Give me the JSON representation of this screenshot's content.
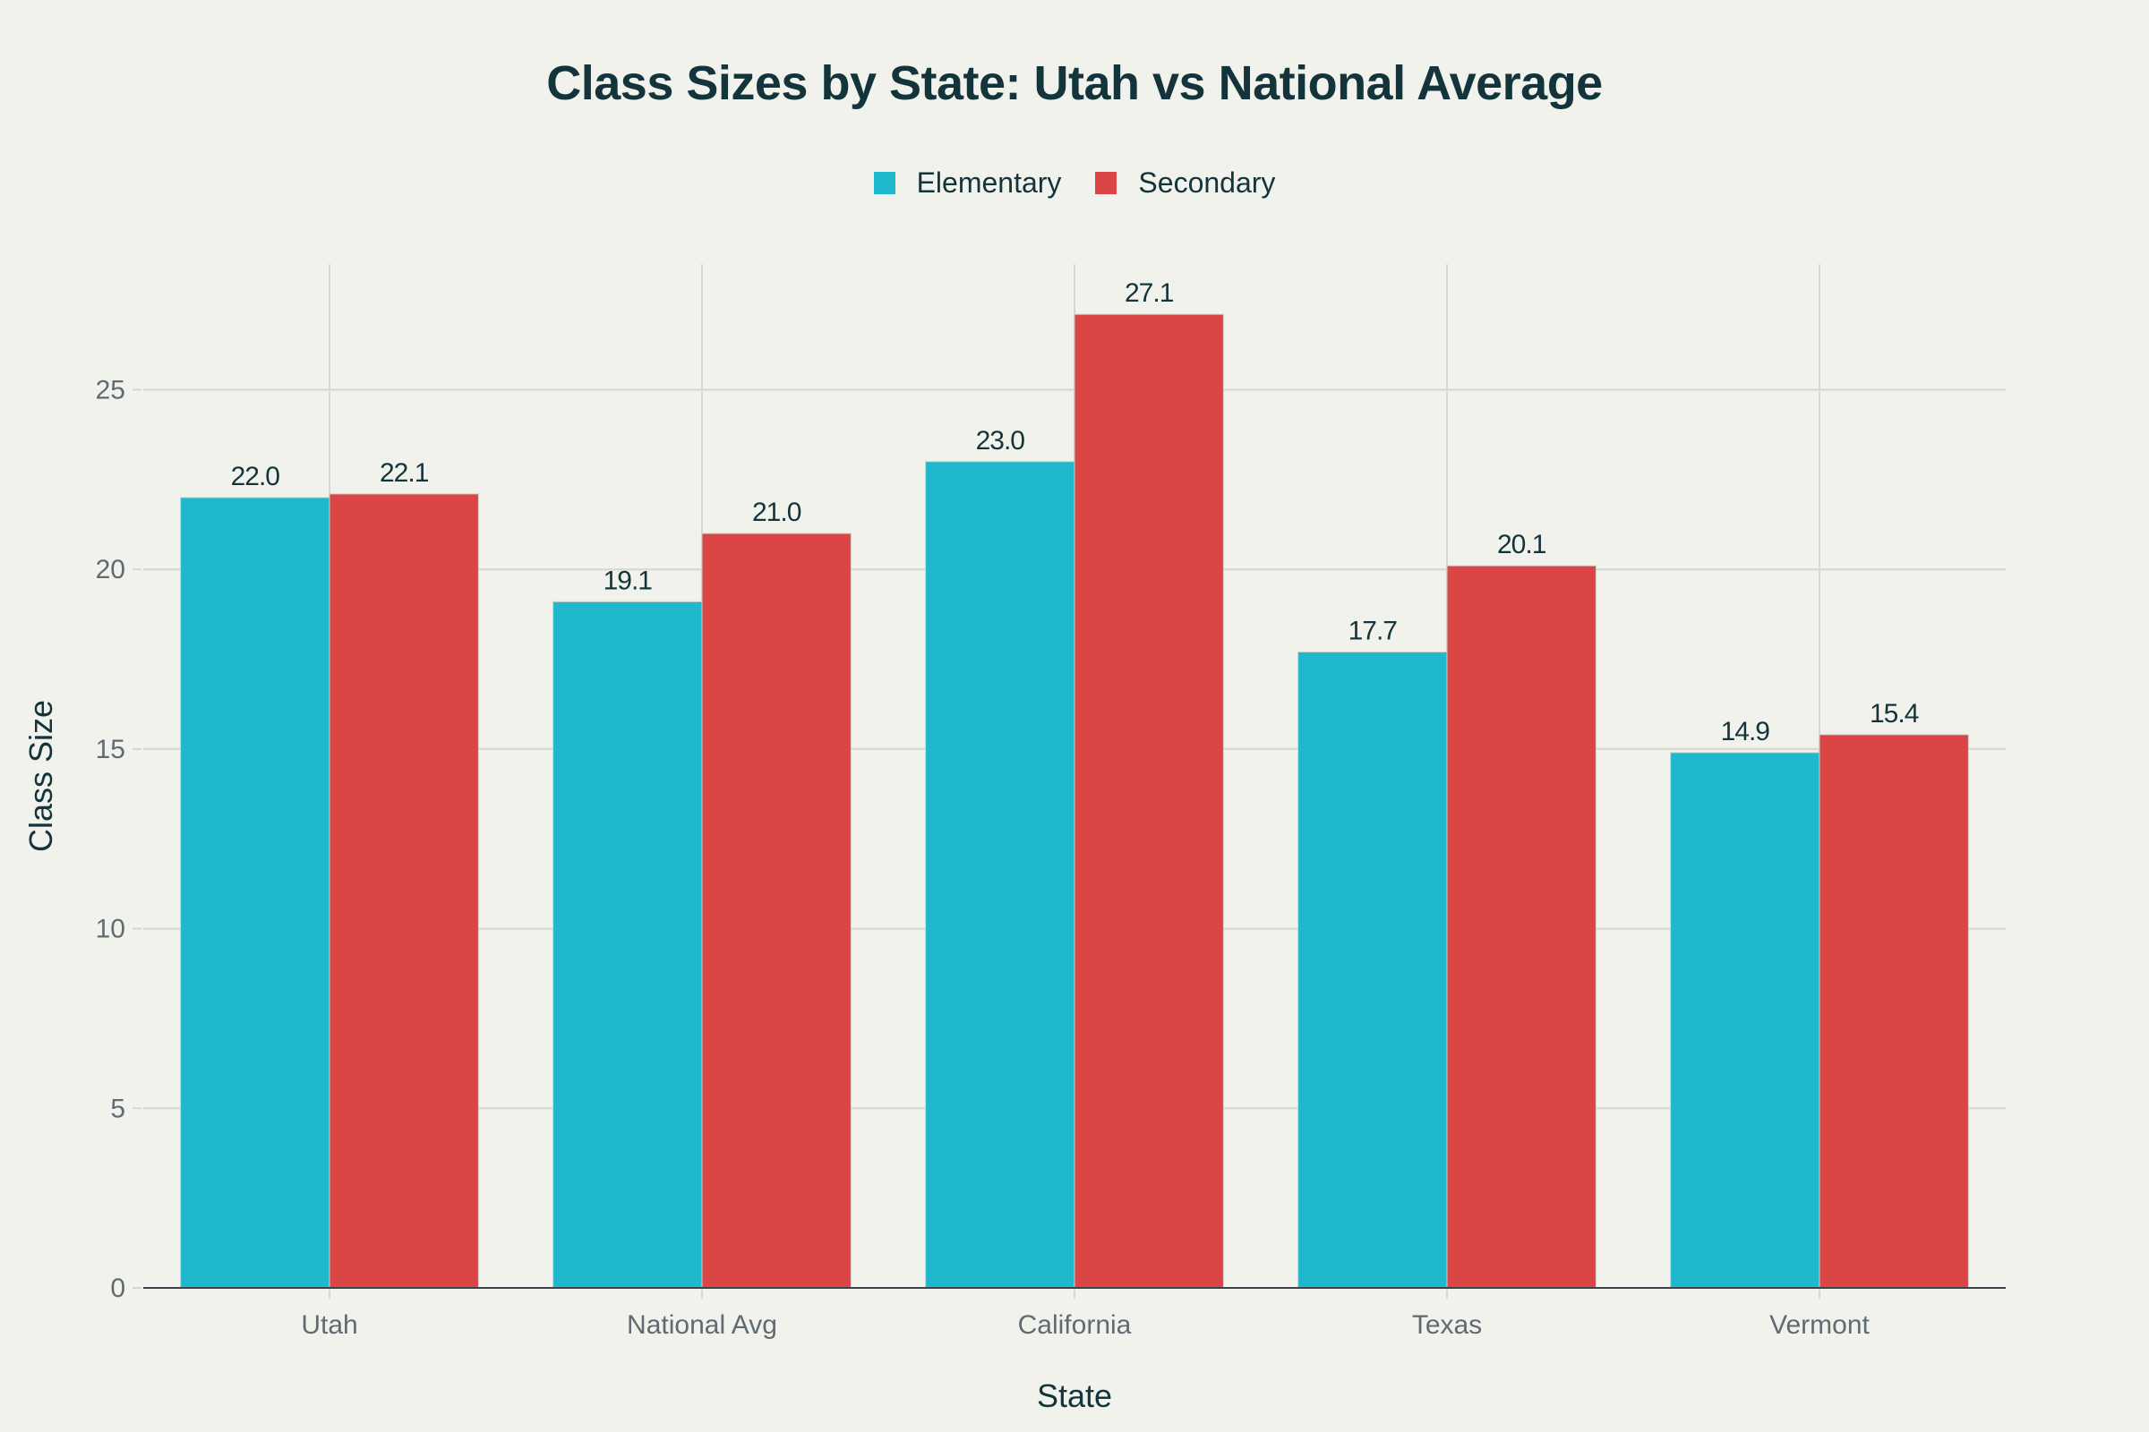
{
  "chart_data": {
    "type": "bar",
    "title": "Class Sizes by State: Utah vs National Average",
    "xlabel": "State",
    "ylabel": "Class Size",
    "categories": [
      "Utah",
      "National Avg",
      "California",
      "Texas",
      "Vermont"
    ],
    "series": [
      {
        "name": "Elementary",
        "color": "#1fb8cd",
        "values": [
          22.0,
          19.1,
          23.0,
          17.7,
          14.9
        ],
        "labels": [
          "22.0",
          "19.1",
          "23.0",
          "17.7",
          "14.9"
        ]
      },
      {
        "name": "Secondary",
        "color": "#db4545",
        "values": [
          22.1,
          21.0,
          27.1,
          20.1,
          15.4
        ],
        "labels": [
          "22.1",
          "21.0",
          "27.1",
          "20.1",
          "15.4"
        ]
      }
    ],
    "ylim": [
      0,
      28.5
    ],
    "yticks": [
      0,
      5,
      10,
      15,
      20,
      25
    ],
    "grid": true,
    "legend_position": "top-center"
  }
}
